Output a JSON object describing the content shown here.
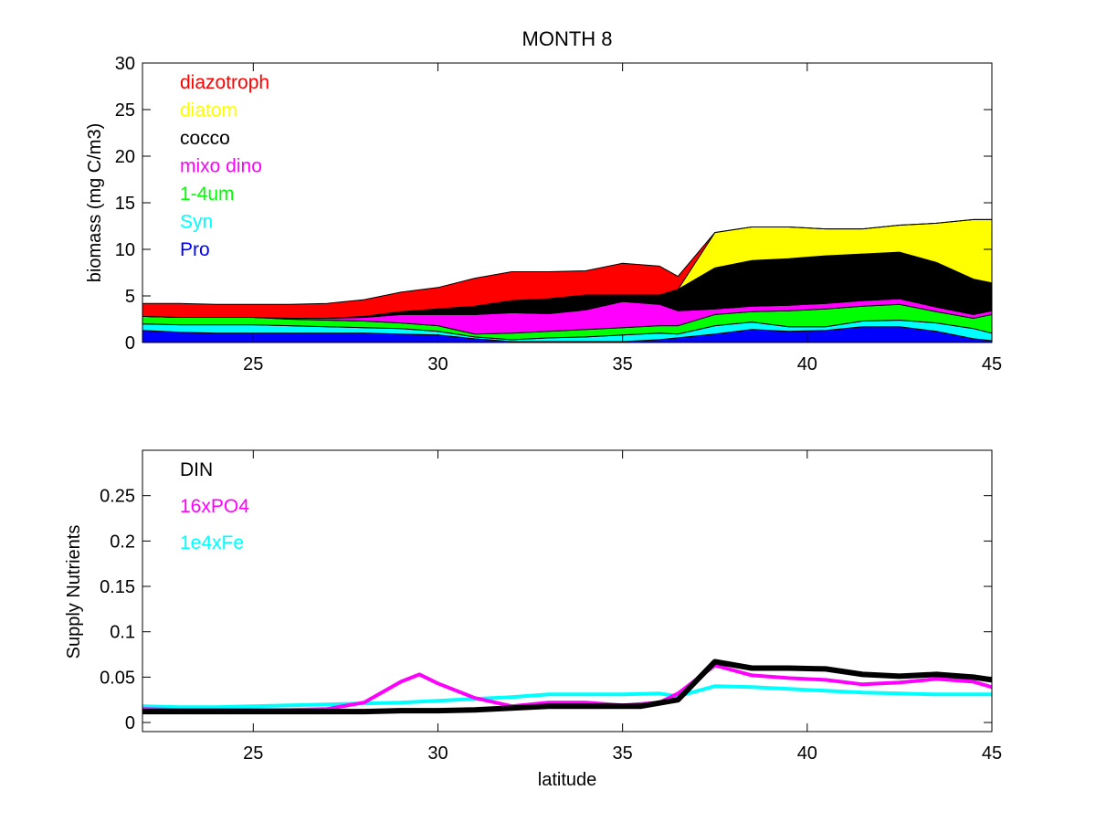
{
  "figure_title": "MONTH 8",
  "chart_data": [
    {
      "type": "area",
      "stacked": true,
      "title": "MONTH 8",
      "xlabel": "",
      "ylabel": "biomass (mg C/m3)",
      "xlim": [
        22,
        45
      ],
      "ylim": [
        0,
        30
      ],
      "xticks": [
        25,
        30,
        35,
        40,
        45
      ],
      "yticks": [
        0,
        5,
        10,
        15,
        20,
        25,
        30
      ],
      "grid": false,
      "legend_position": "top-left",
      "x": [
        22,
        23,
        24,
        25,
        26,
        27,
        28,
        29,
        30,
        31,
        32,
        33,
        34,
        35,
        36,
        36.5,
        37.5,
        38.5,
        39.5,
        40.5,
        41.5,
        42.5,
        43.5,
        44.5,
        45
      ],
      "series": [
        {
          "name": "Pro",
          "color": "#0000ff",
          "values": [
            1.3,
            1.1,
            1.0,
            1.0,
            1.0,
            1.0,
            1.0,
            0.9,
            0.8,
            0.4,
            0.1,
            0.1,
            0.1,
            0.1,
            0.3,
            0.5,
            0.9,
            1.4,
            1.2,
            1.3,
            1.7,
            1.7,
            1.2,
            0.4,
            0.2
          ]
        },
        {
          "name": "Syn",
          "color": "#00ffff",
          "values": [
            0.7,
            0.8,
            0.9,
            0.9,
            0.8,
            0.7,
            0.6,
            0.6,
            0.4,
            0.2,
            0.2,
            0.4,
            0.5,
            0.7,
            0.7,
            0.4,
            0.9,
            0.8,
            0.5,
            0.4,
            0.6,
            0.7,
            0.9,
            1.1,
            0.8
          ]
        },
        {
          "name": "1-4um",
          "color": "#00ff00",
          "values": [
            0.8,
            0.8,
            0.8,
            0.8,
            0.7,
            0.7,
            0.7,
            0.6,
            0.6,
            0.3,
            0.7,
            0.7,
            0.8,
            0.8,
            0.8,
            0.9,
            1.2,
            1.1,
            1.7,
            1.9,
            1.6,
            1.7,
            1.2,
            1.1,
            2.0
          ]
        },
        {
          "name": "mixo dino",
          "color": "#ff00ff",
          "values": [
            0.0,
            0.0,
            0.0,
            0.0,
            0.1,
            0.2,
            0.4,
            0.9,
            1.2,
            2.1,
            2.2,
            1.9,
            2.1,
            2.8,
            2.3,
            1.6,
            0.6,
            0.6,
            0.6,
            0.6,
            0.6,
            0.6,
            0.5,
            0.4,
            0.4
          ]
        },
        {
          "name": "cocco",
          "color": "#000000",
          "values": [
            0.0,
            0.0,
            0.0,
            0.0,
            0.0,
            0.0,
            0.1,
            0.3,
            0.6,
            0.9,
            1.3,
            1.6,
            1.6,
            0.7,
            1.0,
            2.3,
            4.4,
            4.9,
            5.0,
            5.1,
            5.0,
            5.0,
            4.8,
            3.8,
            3.0
          ]
        },
        {
          "name": "diatom",
          "color": "#ffff00",
          "values": [
            0.0,
            0.0,
            0.0,
            0.0,
            0.0,
            0.0,
            0.0,
            0.0,
            0.0,
            0.0,
            0.0,
            0.0,
            0.0,
            0.0,
            0.0,
            0.0,
            3.8,
            3.6,
            3.4,
            2.9,
            2.7,
            2.9,
            4.2,
            6.4,
            6.8
          ]
        },
        {
          "name": "diazotroph",
          "color": "#ff0000",
          "values": [
            1.4,
            1.5,
            1.4,
            1.4,
            1.5,
            1.6,
            1.8,
            2.1,
            2.3,
            3.0,
            3.1,
            2.9,
            2.6,
            3.4,
            3.1,
            1.4,
            0.0,
            0.0,
            0.0,
            0.0,
            0.0,
            0.0,
            0.0,
            0.0,
            0.0
          ]
        }
      ]
    },
    {
      "type": "line",
      "title": "",
      "xlabel": "latitude",
      "ylabel": "Supply Nutrients",
      "xlim": [
        22,
        45
      ],
      "ylim": [
        -0.01,
        0.3
      ],
      "xticks": [
        25,
        30,
        35,
        40,
        45
      ],
      "yticks": [
        0,
        0.05,
        0.1,
        0.15,
        0.2,
        0.25
      ],
      "grid": false,
      "legend_position": "top-left",
      "series": [
        {
          "name": "1e4xFe",
          "color": "#00ffff",
          "width": 4,
          "x": [
            22,
            23,
            24,
            25,
            26,
            27,
            28,
            29,
            30,
            31,
            32,
            33,
            34,
            35,
            36,
            36.5,
            37.5,
            38.5,
            39.5,
            40.5,
            41.5,
            42.5,
            43.5,
            44.5,
            45
          ],
          "values": [
            0.018,
            0.017,
            0.017,
            0.018,
            0.019,
            0.02,
            0.021,
            0.022,
            0.024,
            0.026,
            0.028,
            0.031,
            0.031,
            0.031,
            0.032,
            0.029,
            0.04,
            0.039,
            0.037,
            0.035,
            0.033,
            0.032,
            0.031,
            0.031,
            0.031
          ]
        },
        {
          "name": "16xPO4",
          "color": "#ff00ff",
          "width": 4,
          "x": [
            22,
            23,
            24,
            25,
            26,
            27,
            28,
            29,
            29.5,
            30,
            31,
            32,
            33,
            34,
            35,
            36,
            36.5,
            37.5,
            38.5,
            39.5,
            40.5,
            41.5,
            42.5,
            43.5,
            44.5,
            45
          ],
          "values": [
            0.015,
            0.014,
            0.014,
            0.014,
            0.014,
            0.015,
            0.022,
            0.045,
            0.053,
            0.043,
            0.027,
            0.018,
            0.022,
            0.022,
            0.019,
            0.022,
            0.032,
            0.063,
            0.052,
            0.049,
            0.047,
            0.042,
            0.044,
            0.048,
            0.045,
            0.039
          ]
        },
        {
          "name": "DIN",
          "color": "#000000",
          "width": 6,
          "x": [
            22,
            23,
            24,
            25,
            26,
            27,
            28,
            29,
            30,
            31,
            32,
            33,
            34,
            35,
            35.5,
            36.5,
            37.5,
            38.5,
            39.5,
            40.5,
            41.5,
            42.5,
            43.5,
            44.5,
            45
          ],
          "values": [
            0.012,
            0.012,
            0.012,
            0.012,
            0.012,
            0.012,
            0.012,
            0.013,
            0.013,
            0.014,
            0.016,
            0.018,
            0.018,
            0.018,
            0.018,
            0.025,
            0.067,
            0.06,
            0.06,
            0.059,
            0.053,
            0.051,
            0.053,
            0.05,
            0.047
          ]
        }
      ]
    }
  ]
}
